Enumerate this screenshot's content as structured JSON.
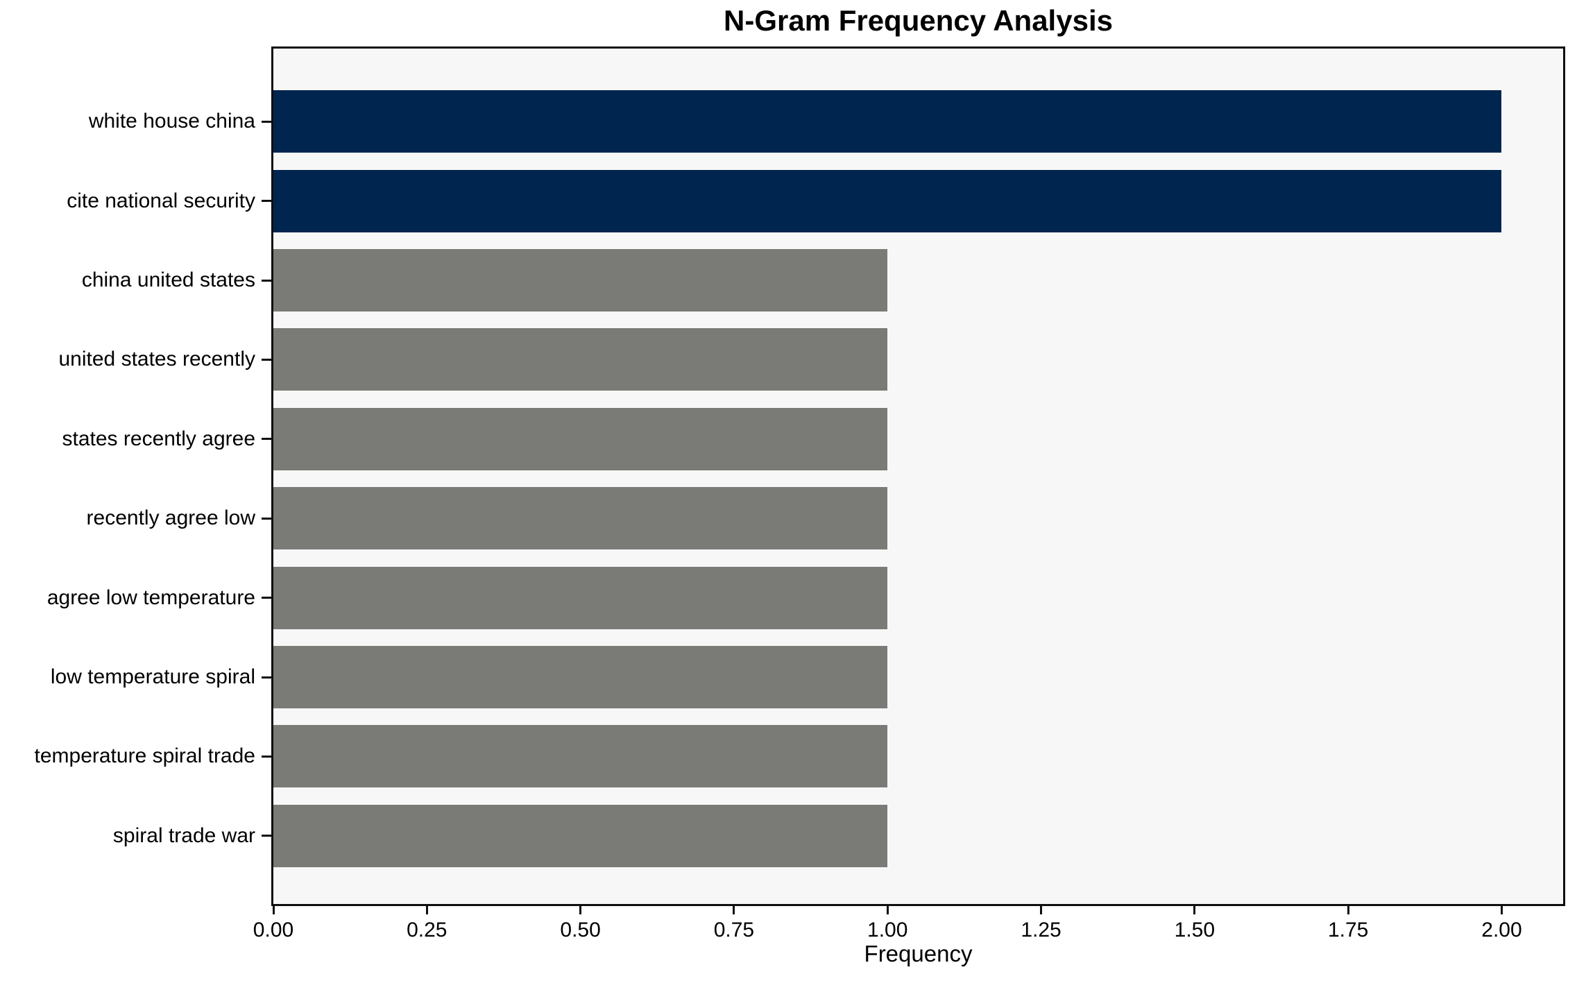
{
  "chart_data": {
    "type": "bar",
    "orientation": "horizontal",
    "title": "N-Gram Frequency Analysis",
    "xlabel": "Frequency",
    "ylabel": "",
    "categories": [
      "white house china",
      "cite national security",
      "china united states",
      "united states recently",
      "states recently agree",
      "recently agree low",
      "agree low temperature",
      "low temperature spiral",
      "temperature spiral trade",
      "spiral trade war"
    ],
    "values": [
      2,
      2,
      1,
      1,
      1,
      1,
      1,
      1,
      1,
      1
    ],
    "bar_colors": [
      "#00254f",
      "#00254f",
      "#7a7a77",
      "#7a7a77",
      "#7a7a77",
      "#7a7a77",
      "#7a7a77",
      "#7a7a77",
      "#7a7a77",
      "#7a7a77"
    ],
    "xlim": [
      0,
      2.1
    ],
    "xticks": [
      0,
      0.25,
      0.5,
      0.75,
      1.0,
      1.25,
      1.5,
      1.75,
      2.0
    ],
    "xtick_labels": [
      "0.00",
      "0.25",
      "0.50",
      "0.75",
      "1.00",
      "1.25",
      "1.50",
      "1.75",
      "2.00"
    ],
    "grid": false,
    "legend": "none",
    "colors": {
      "highlight_bar": "#00254f",
      "default_bar": "#7a7a77",
      "plot_background": "#f7f7f7",
      "figure_background": "#ffffff",
      "axis": "#0f0f0f"
    }
  }
}
